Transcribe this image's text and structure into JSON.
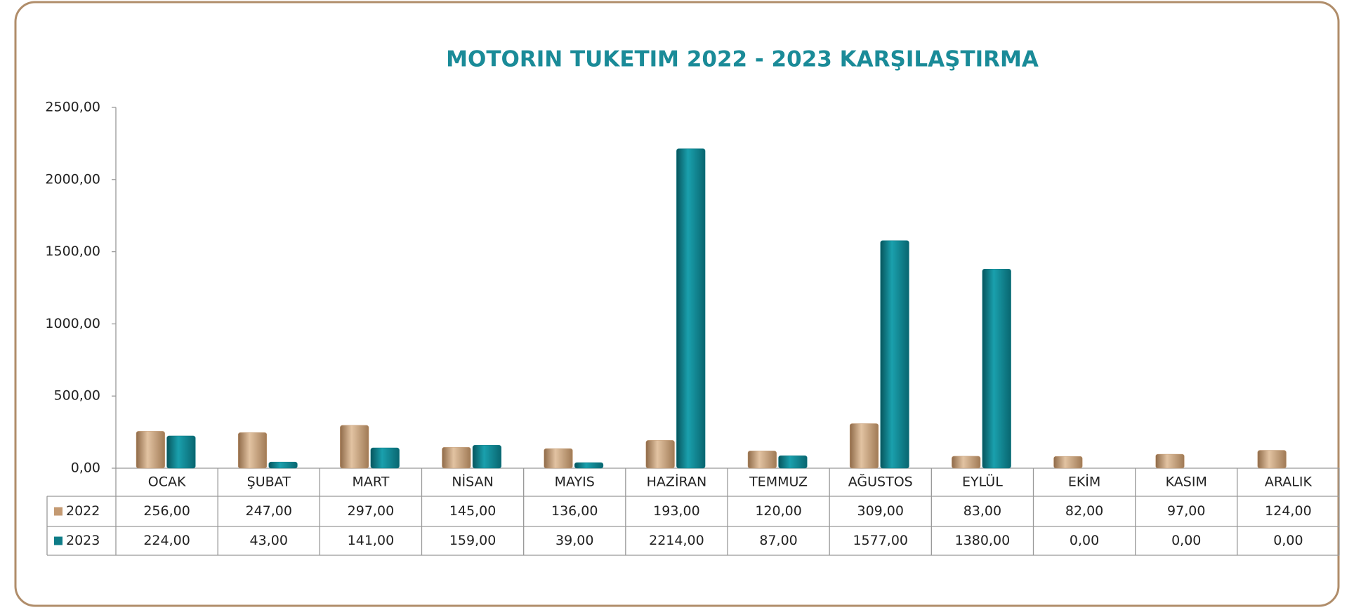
{
  "chart_data": {
    "type": "bar",
    "title": "MOTORIN TUKETIM 2022 - 2023 KARŞILAŞTIRMA",
    "categories": [
      "OCAK",
      "ŞUBAT",
      "MART",
      "NİSAN",
      "MAYIS",
      "HAZİRAN",
      "TEMMUZ",
      "AĞUSTOS",
      "EYLÜL",
      "EKİM",
      "KASIM",
      "ARALIK"
    ],
    "series": [
      {
        "name": "2022",
        "color": "#c49a72",
        "values": [
          256,
          247,
          297,
          145,
          136,
          193,
          120,
          309,
          83,
          82,
          97,
          124
        ],
        "value_labels": [
          "256,00",
          "247,00",
          "297,00",
          "145,00",
          "136,00",
          "193,00",
          "120,00",
          "309,00",
          "83,00",
          "82,00",
          "97,00",
          "124,00"
        ]
      },
      {
        "name": "2023",
        "color": "#0e7c87",
        "values": [
          224,
          43,
          141,
          159,
          39,
          2214,
          87,
          1577,
          1380,
          0,
          0,
          0
        ],
        "value_labels": [
          "224,00",
          "43,00",
          "141,00",
          "159,00",
          "39,00",
          "2214,00",
          "87,00",
          "1577,00",
          "1380,00",
          "0,00",
          "0,00",
          "0,00"
        ]
      }
    ],
    "ylim": [
      0,
      2500
    ],
    "yticks": [
      {
        "value": 0,
        "label": "0,00"
      },
      {
        "value": 500,
        "label": "500,00"
      },
      {
        "value": 1000,
        "label": "1000,00"
      },
      {
        "value": 1500,
        "label": "1500,00"
      },
      {
        "value": 2000,
        "label": "2000,00"
      },
      {
        "value": 2500,
        "label": "2500,00"
      }
    ],
    "grid": false,
    "data_table": true
  }
}
